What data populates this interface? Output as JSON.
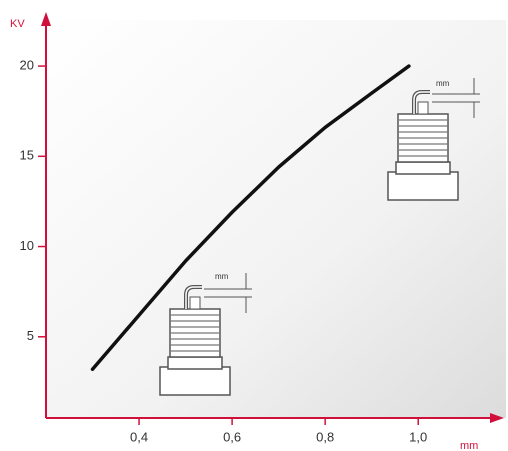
{
  "chart_data": {
    "type": "line",
    "y_label": "KV",
    "x_label": "mm",
    "x": [
      0.3,
      0.4,
      0.5,
      0.6,
      0.7,
      0.8,
      0.9,
      0.98
    ],
    "series": [
      {
        "color": "#111111",
        "values": [
          3.2,
          6.2,
          9.2,
          11.9,
          14.4,
          16.6,
          18.5,
          20.0
        ]
      }
    ],
    "xlim": [
      0.2,
      1.15
    ],
    "ylim": [
      0.5,
      21.5
    ],
    "xticks": [
      {
        "value": 0.4,
        "label": "0,4"
      },
      {
        "value": 0.6,
        "label": "0,6"
      },
      {
        "value": 0.8,
        "label": "0,8"
      },
      {
        "value": 1.0,
        "label": "1,0"
      }
    ],
    "yticks": [
      5,
      10,
      15,
      20
    ],
    "axis_color": "#d0103a",
    "annotations": [
      "mm",
      "mm"
    ]
  }
}
